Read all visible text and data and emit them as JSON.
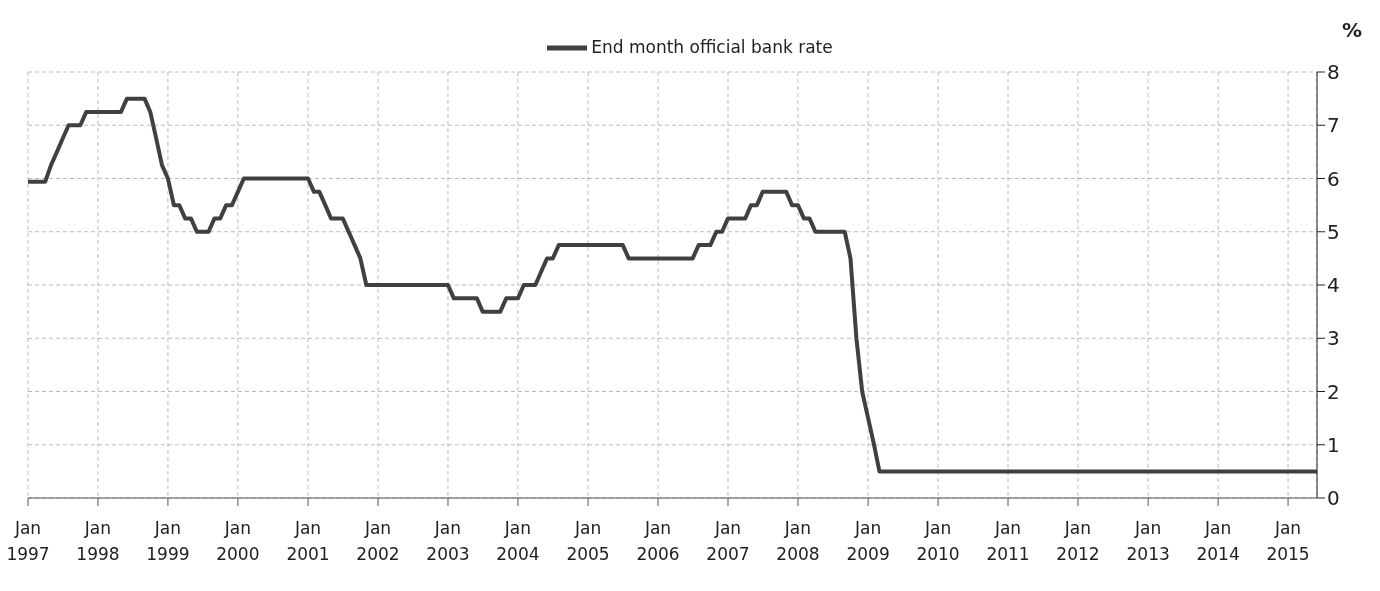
{
  "chart_data": {
    "type": "line",
    "ylabel": "%",
    "legend": "top",
    "grid": true,
    "marker": "none",
    "line_style": "solid",
    "xlim": [
      "1997-01",
      "2015-06"
    ],
    "ylim": [
      0,
      8
    ],
    "yticks": [
      0,
      1,
      2,
      3,
      4,
      5,
      6,
      7,
      8
    ],
    "xticks": [
      {
        "value": "1997-01",
        "label": "Jan 1997"
      },
      {
        "value": "1998-01",
        "label": "Jan 1998"
      },
      {
        "value": "1999-01",
        "label": "Jan 1999"
      },
      {
        "value": "2000-01",
        "label": "Jan 2000"
      },
      {
        "value": "2001-01",
        "label": "Jan 2001"
      },
      {
        "value": "2002-01",
        "label": "Jan 2002"
      },
      {
        "value": "2003-01",
        "label": "Jan 2003"
      },
      {
        "value": "2004-01",
        "label": "Jan 2004"
      },
      {
        "value": "2005-01",
        "label": "Jan 2005"
      },
      {
        "value": "2006-01",
        "label": "Jan 2006"
      },
      {
        "value": "2007-01",
        "label": "Jan 2007"
      },
      {
        "value": "2008-01",
        "label": "Jan 2008"
      },
      {
        "value": "2009-01",
        "label": "Jan 2009"
      },
      {
        "value": "2010-01",
        "label": "Jan 2010"
      },
      {
        "value": "2011-01",
        "label": "Jan 2011"
      },
      {
        "value": "2012-01",
        "label": "Jan 2012"
      },
      {
        "value": "2013-01",
        "label": "Jan 2013"
      },
      {
        "value": "2014-01",
        "label": "Jan 2014"
      },
      {
        "value": "2015-01",
        "label": "Jan 2015"
      }
    ],
    "series": [
      {
        "name": "End month official bank rate",
        "color": "#404040",
        "x": [
          "1997-01",
          "1997-04",
          "1997-05",
          "1997-06",
          "1997-07",
          "1997-08",
          "1997-10",
          "1997-11",
          "1998-05",
          "1998-06",
          "1998-09",
          "1998-10",
          "1998-11",
          "1998-12",
          "1999-01",
          "1999-02",
          "1999-03",
          "1999-04",
          "1999-05",
          "1999-06",
          "1999-08",
          "1999-09",
          "1999-10",
          "1999-11",
          "1999-12",
          "2000-01",
          "2000-02",
          "2001-01",
          "2001-02",
          "2001-03",
          "2001-04",
          "2001-05",
          "2001-07",
          "2001-08",
          "2001-09",
          "2001-10",
          "2001-11",
          "2003-01",
          "2003-02",
          "2003-06",
          "2003-07",
          "2003-10",
          "2003-11",
          "2004-01",
          "2004-02",
          "2004-04",
          "2004-05",
          "2004-06",
          "2004-07",
          "2004-08",
          "2005-07",
          "2005-08",
          "2006-07",
          "2006-08",
          "2006-10",
          "2006-11",
          "2006-12",
          "2007-01",
          "2007-04",
          "2007-05",
          "2007-06",
          "2007-07",
          "2007-11",
          "2007-12",
          "2008-01",
          "2008-02",
          "2008-03",
          "2008-04",
          "2008-09",
          "2008-10",
          "2008-11",
          "2008-12",
          "2009-01",
          "2009-02",
          "2009-03",
          "2015-06"
        ],
        "values": [
          5.94,
          5.94,
          6.25,
          6.5,
          6.75,
          7.0,
          7.0,
          7.25,
          7.25,
          7.5,
          7.5,
          7.25,
          6.75,
          6.25,
          6.0,
          5.5,
          5.5,
          5.25,
          5.25,
          5.0,
          5.0,
          5.25,
          5.25,
          5.5,
          5.5,
          5.75,
          6.0,
          6.0,
          5.75,
          5.75,
          5.5,
          5.25,
          5.25,
          5.0,
          4.75,
          4.5,
          4.0,
          4.0,
          3.75,
          3.75,
          3.5,
          3.5,
          3.75,
          3.75,
          4.0,
          4.0,
          4.25,
          4.5,
          4.5,
          4.75,
          4.75,
          4.5,
          4.5,
          4.75,
          4.75,
          5.0,
          5.0,
          5.25,
          5.25,
          5.5,
          5.5,
          5.75,
          5.75,
          5.5,
          5.5,
          5.25,
          5.25,
          5.0,
          5.0,
          4.5,
          3.0,
          2.0,
          1.5,
          1.0,
          0.5,
          0.5
        ]
      }
    ]
  }
}
